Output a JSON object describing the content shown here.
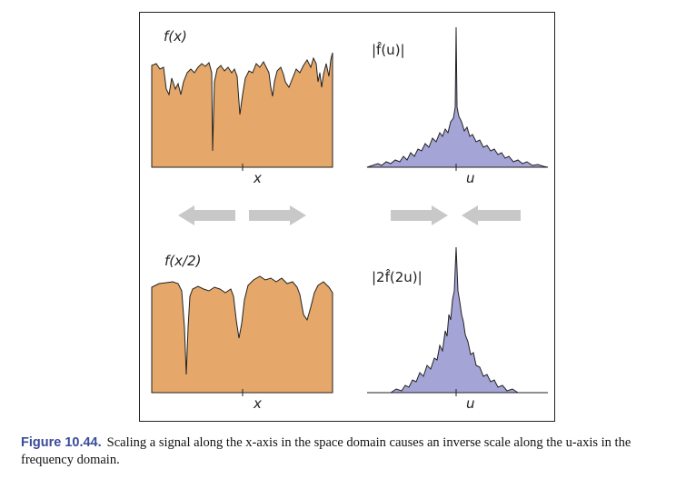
{
  "figure": {
    "panels": {
      "top_left_label": "f(x)",
      "top_left_axis": "x",
      "top_right_label": "|f̂(u)|",
      "top_right_axis": "u",
      "bottom_left_label": "f(x/2)",
      "bottom_left_axis": "x",
      "bottom_right_label": "|2f̂(2u)|",
      "bottom_right_axis": "u"
    },
    "colors": {
      "signal_fill": "#e5a86a",
      "spectrum_fill": "#a5a4d6",
      "arrow": "#c8c8c8",
      "caption_number": "#3a4b9a"
    },
    "arrows": [
      "left",
      "right",
      "right",
      "left"
    ]
  },
  "caption": {
    "number": "Figure 10.44.",
    "text": "Scaling a signal along the x-axis in the space domain causes an inverse scale along the u-axis in the frequency domain."
  }
}
